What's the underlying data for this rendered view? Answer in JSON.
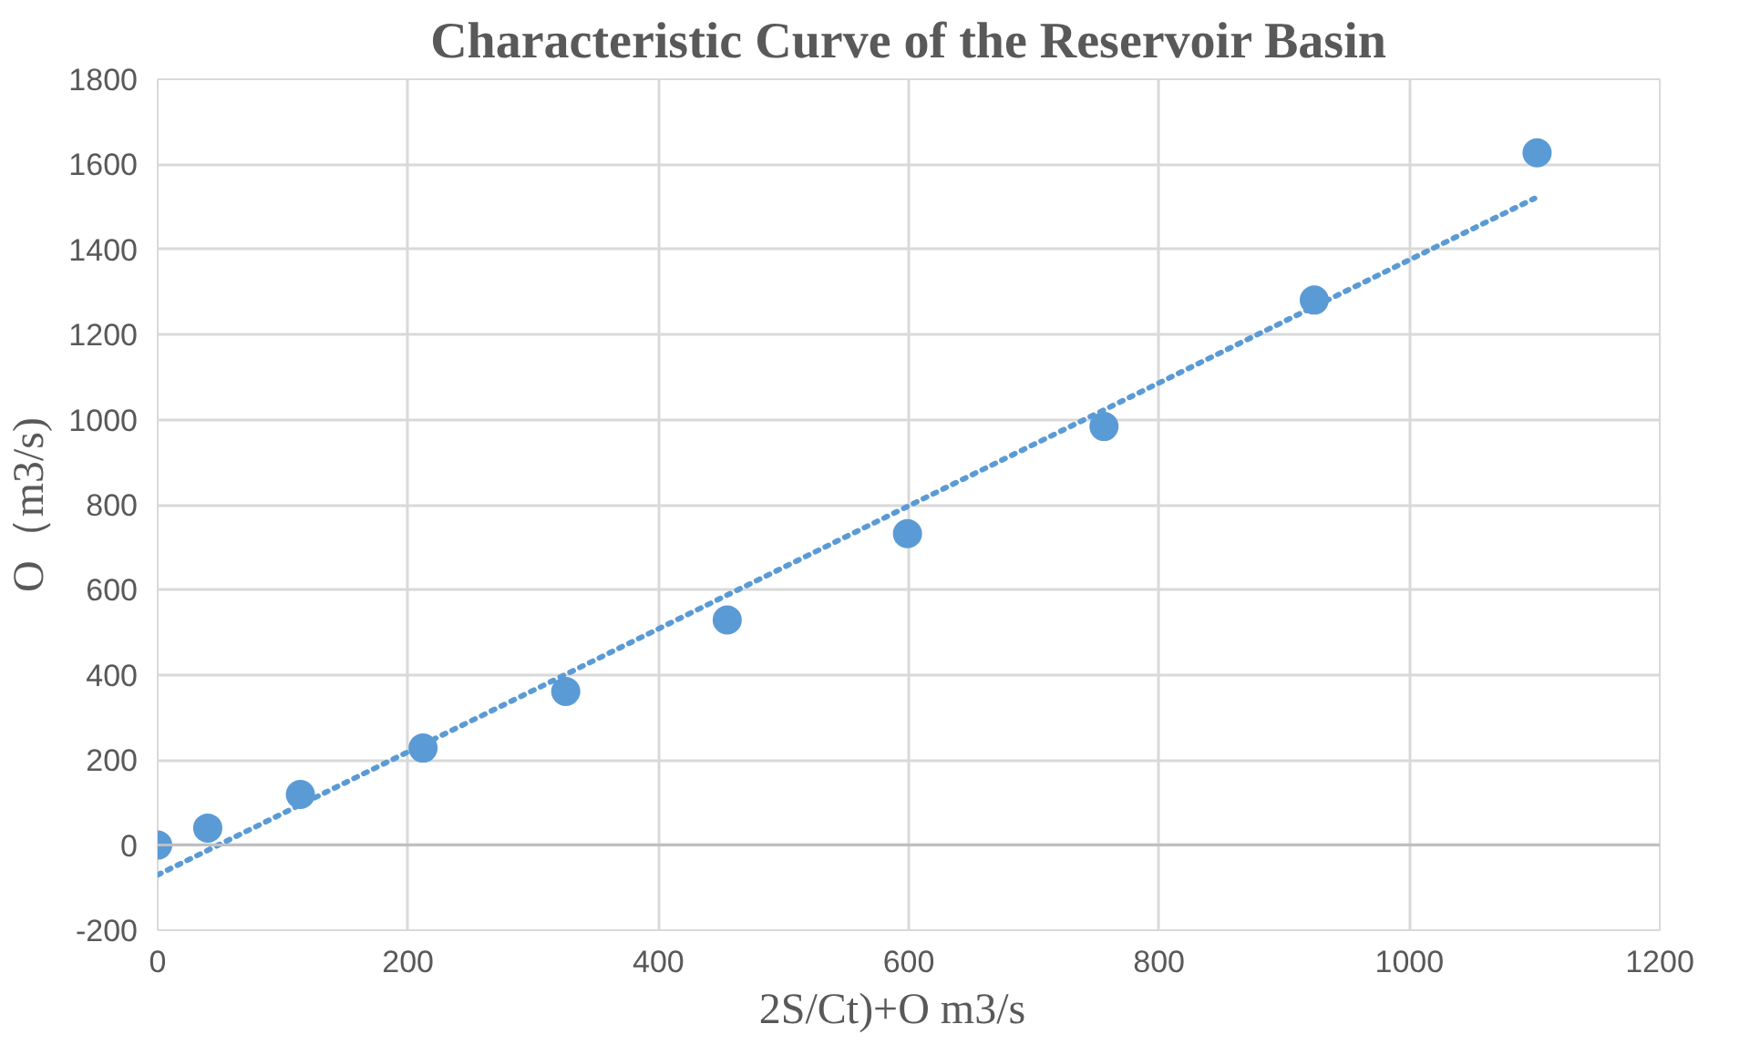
{
  "chart_data": {
    "type": "scatter",
    "title": "Characteristic Curve of the Reservoir Basin",
    "xlabel": "2S/Ct)+O    m3/s",
    "ylabel": "O（m3/s)",
    "xlim": [
      0,
      1200
    ],
    "xticks": [
      0,
      200,
      400,
      600,
      800,
      1000,
      1200
    ],
    "ylim": [
      -200,
      1800
    ],
    "yticks": [
      -200,
      0,
      200,
      400,
      600,
      800,
      1000,
      1200,
      1400,
      1600,
      1800
    ],
    "grid": true,
    "marker": "circle",
    "series": [
      {
        "color": "#5b9bd5",
        "x": [
          0,
          40,
          114,
          212,
          326,
          455,
          599,
          756,
          924,
          1102
        ],
        "values": [
          0,
          40,
          119,
          228,
          361,
          529,
          732,
          984,
          1281,
          1627
        ]
      },
      {
        "type": "line",
        "color": "#5b9bd5",
        "line_style": "dotted",
        "marker": "none",
        "x": [
          0,
          1100
        ],
        "values": [
          -70,
          1520
        ]
      }
    ]
  }
}
